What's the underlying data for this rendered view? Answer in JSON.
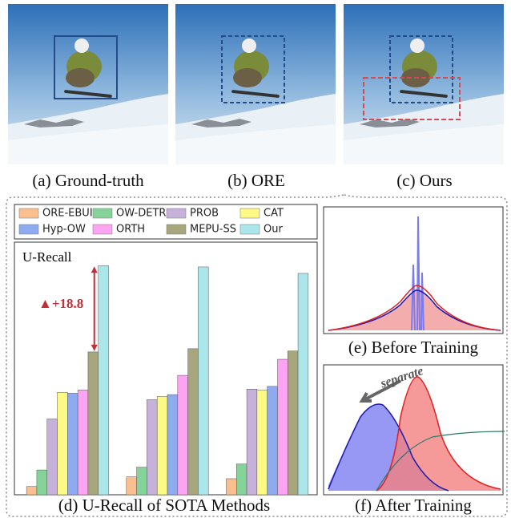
{
  "panels": {
    "a": "(a) Ground-truth",
    "b": "(b) ORE",
    "c": "(c) Ours"
  },
  "chart_data": {
    "type": "bar",
    "caption": "(d) U-Recall of SOTA Methods",
    "y_label": "U-Recall",
    "annotation": "▲+18.8",
    "categories": [
      null,
      null,
      null
    ],
    "ylim": [
      0,
      55
    ],
    "series": [
      {
        "name": "ORE-EBUI",
        "color": "#f9bf8f",
        "values": [
          1.8,
          3.9,
          3.5
        ]
      },
      {
        "name": "OW-DETR",
        "color": "#86d39a",
        "values": [
          5.4,
          6.0,
          6.7
        ]
      },
      {
        "name": "PROB",
        "color": "#c6b1db",
        "values": [
          16.5,
          20.7,
          23.0
        ]
      },
      {
        "name": "CAT",
        "color": "#fdf985",
        "values": [
          22.3,
          21.4,
          22.8
        ]
      },
      {
        "name": "Hyp-OW",
        "color": "#8fabef",
        "values": [
          22.1,
          21.8,
          23.6
        ]
      },
      {
        "name": "ORTH",
        "color": "#fba5f2",
        "values": [
          22.8,
          26.0,
          29.5
        ]
      },
      {
        "name": "MEPU-SS",
        "color": "#a7a67d",
        "values": [
          31.1,
          31.8,
          31.3
        ]
      },
      {
        "name": "Our",
        "color": "#abe6ea",
        "values": [
          49.9,
          49.6,
          48.2
        ]
      }
    ]
  },
  "before": {
    "caption": "(e) Before Training"
  },
  "after": {
    "caption": "(f) After Training",
    "annotation": "separate"
  }
}
